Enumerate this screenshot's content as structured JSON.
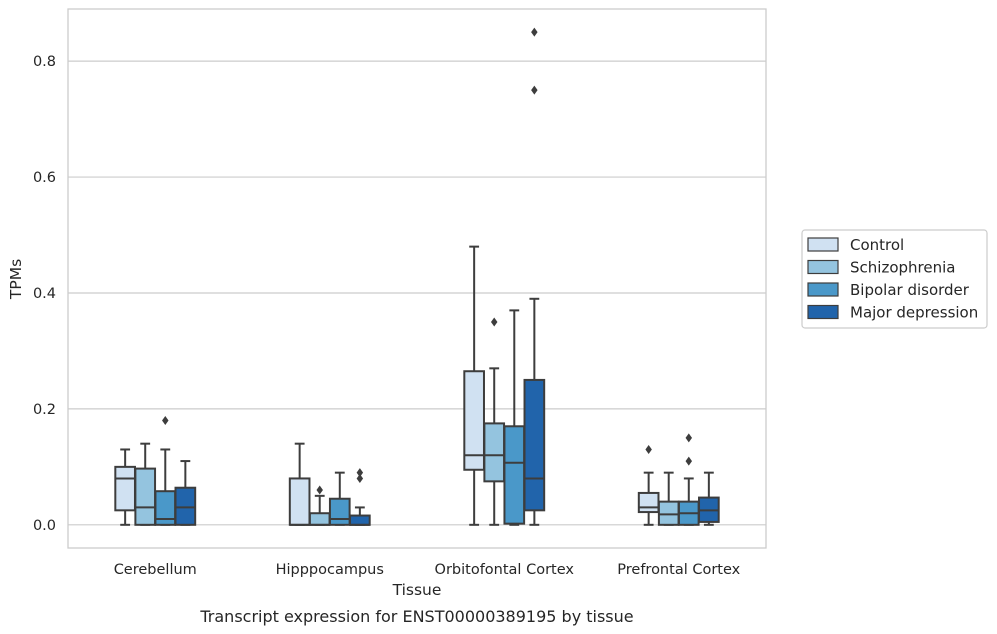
{
  "chart_data": {
    "type": "boxplot",
    "caption": "Transcript expression for ENST00000389195 by tissue",
    "xlabel": "Tissue",
    "ylabel": "TPMs",
    "ylim": [
      -0.04,
      0.89
    ],
    "yticks": [
      0.0,
      0.2,
      0.4,
      0.6,
      0.8
    ],
    "ytick_labels": [
      "0.0",
      "0.2",
      "0.4",
      "0.6",
      "0.8"
    ],
    "grid": "horizontal",
    "legend_position": "right",
    "categories": [
      "Cerebellum",
      "Hipppocampus",
      "Orbitofontal Cortex",
      "Prefrontal Cortex"
    ],
    "series": [
      {
        "name": "Control",
        "color": "#d0e1f2",
        "boxes": [
          {
            "whislo": 0.0,
            "q1": 0.025,
            "med": 0.08,
            "q3": 0.1,
            "whishi": 0.13,
            "fliers": []
          },
          {
            "whislo": 0.0,
            "q1": 0.0,
            "med": 0.0,
            "q3": 0.08,
            "whishi": 0.14,
            "fliers": []
          },
          {
            "whislo": 0.0,
            "q1": 0.095,
            "med": 0.12,
            "q3": 0.265,
            "whishi": 0.48,
            "fliers": []
          },
          {
            "whislo": 0.0,
            "q1": 0.022,
            "med": 0.03,
            "q3": 0.055,
            "whishi": 0.09,
            "fliers": [
              0.13
            ]
          }
        ]
      },
      {
        "name": "Schizophrenia",
        "color": "#94c4df",
        "boxes": [
          {
            "whislo": 0.0,
            "q1": 0.0,
            "med": 0.03,
            "q3": 0.097,
            "whishi": 0.14,
            "fliers": []
          },
          {
            "whislo": 0.0,
            "q1": 0.0,
            "med": 0.0,
            "q3": 0.02,
            "whishi": 0.05,
            "fliers": [
              0.06
            ]
          },
          {
            "whislo": 0.0,
            "q1": 0.075,
            "med": 0.12,
            "q3": 0.175,
            "whishi": 0.27,
            "fliers": [
              0.35
            ]
          },
          {
            "whislo": 0.0,
            "q1": 0.0,
            "med": 0.018,
            "q3": 0.04,
            "whishi": 0.09,
            "fliers": []
          }
        ]
      },
      {
        "name": "Bipolar disorder",
        "color": "#4a98c9",
        "boxes": [
          {
            "whislo": 0.0,
            "q1": 0.0,
            "med": 0.01,
            "q3": 0.058,
            "whishi": 0.13,
            "fliers": [
              0.18
            ]
          },
          {
            "whislo": 0.0,
            "q1": 0.0,
            "med": 0.01,
            "q3": 0.045,
            "whishi": 0.09,
            "fliers": []
          },
          {
            "whislo": 0.0,
            "q1": 0.002,
            "med": 0.107,
            "q3": 0.17,
            "whishi": 0.37,
            "fliers": []
          },
          {
            "whislo": 0.0,
            "q1": 0.0,
            "med": 0.02,
            "q3": 0.04,
            "whishi": 0.08,
            "fliers": [
              0.11,
              0.15
            ]
          }
        ]
      },
      {
        "name": "Major depression",
        "color": "#2164ab",
        "boxes": [
          {
            "whislo": 0.0,
            "q1": 0.0,
            "med": 0.03,
            "q3": 0.064,
            "whishi": 0.11,
            "fliers": []
          },
          {
            "whislo": 0.0,
            "q1": 0.0,
            "med": 0.0,
            "q3": 0.016,
            "whishi": 0.03,
            "fliers": [
              0.08,
              0.09
            ]
          },
          {
            "whislo": 0.0,
            "q1": 0.025,
            "med": 0.08,
            "q3": 0.25,
            "whishi": 0.39,
            "fliers": [
              0.75,
              0.85
            ]
          },
          {
            "whislo": 0.0,
            "q1": 0.005,
            "med": 0.025,
            "q3": 0.047,
            "whishi": 0.09,
            "fliers": []
          }
        ]
      }
    ]
  }
}
